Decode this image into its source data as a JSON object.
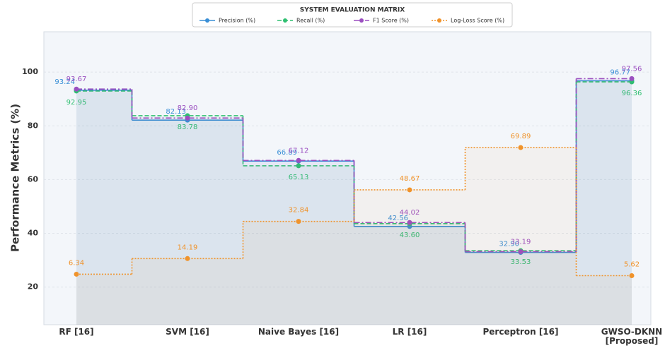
{
  "chart_data": {
    "type": "step",
    "legend_title": "SYSTEM EVALUATION MATRIX",
    "y_label": "Performance Metrics (%)",
    "categories": [
      "RF [16]",
      "SVM [16]",
      "Naive Bayes [16]",
      "LR [16]",
      "Perceptron [16]",
      "GWSO-DKNN\n[Proposed]"
    ],
    "ylim": [
      6,
      115
    ],
    "yticks": [
      20,
      40,
      60,
      80,
      100
    ],
    "y2lim": [
      -19,
      128
    ],
    "grid": true,
    "legend": "top",
    "series": [
      {
        "name": "Precision (%)",
        "color": "#3a8fd6",
        "dash": "solid",
        "values": [
          93.24,
          82.13,
          66.89,
          42.56,
          32.9,
          96.77
        ],
        "value_labels": [
          "93.24",
          "82.13",
          "66.89",
          "42.56",
          "32.90",
          "96.77"
        ]
      },
      {
        "name": "Recall (%)",
        "color": "#2fbf71",
        "dash": "dashed",
        "values": [
          92.95,
          83.78,
          65.13,
          43.6,
          33.53,
          96.36
        ],
        "value_labels": [
          "92.95",
          "83.78",
          "65.13",
          "43.60",
          "33.53",
          "96.36"
        ]
      },
      {
        "name": "F1 Score (%)",
        "color": "#9b4fc0",
        "dash": "dashdot",
        "values": [
          93.67,
          82.9,
          67.12,
          44.02,
          33.19,
          97.56
        ],
        "value_labels": [
          "93.67",
          "82.90",
          "67.12",
          "44.02",
          "33.19",
          "97.56"
        ]
      },
      {
        "name": "Log-Loss Score (%)",
        "color": "#f0932b",
        "dash": "dotted",
        "axis": "y2",
        "values": [
          6.34,
          14.19,
          32.84,
          48.67,
          69.89,
          5.62
        ],
        "value_labels": [
          "6.34",
          "14.19",
          "32.84",
          "48.67",
          "69.89",
          "5.62"
        ]
      }
    ]
  }
}
